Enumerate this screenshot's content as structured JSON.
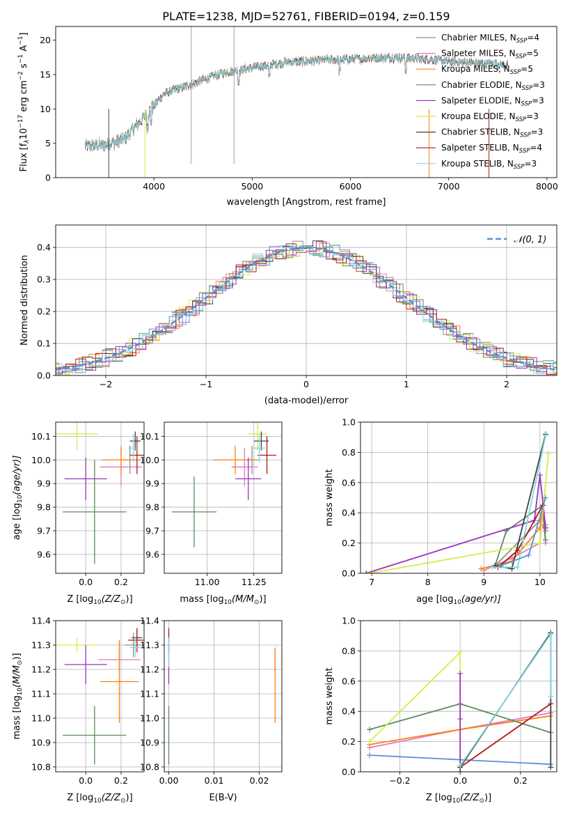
{
  "figure_title": "PLATE=1238, MJD=52761, FIBERID=0194, z=0.159",
  "colors": {
    "chabrier_miles": "#8c8c8c",
    "salpeter_miles": "#e377c2",
    "kroupa_miles": "#ff7f0e",
    "chabrier_elodie": "#5b8a5b",
    "salpeter_elodie": "#9b30c0",
    "kroupa_elodie": "#d4ec4c",
    "chabrier_stelib": "#404040",
    "salpeter_stelib": "#b01818",
    "kroupa_stelib": "#80d8e0",
    "normal_curve": "#5b8fd6",
    "grid": "#b0b0b0"
  },
  "chart_data": [
    {
      "id": "spectrum",
      "type": "line",
      "xlabel": "wavelength [Angstrom, rest frame]",
      "ylabel_main": "Flux [f",
      "ylabel_sub": "λ",
      "ylabel_rest": "10",
      "ylabel_exp": "−17",
      "ylabel_unit": " erg cm",
      "ylabel_exp2": "−2",
      "ylabel_unit2": " s",
      "ylabel_exp3": "−1",
      "ylabel_unit3": " A",
      "ylabel_exp4": "−1",
      "ylabel_end": "]",
      "xlim": [
        3000,
        8100
      ],
      "ylim": [
        0,
        22
      ],
      "xticks": [
        "4000",
        "5000",
        "6000",
        "7000",
        "8000"
      ],
      "yticks": [
        "0",
        "5",
        "10",
        "15",
        "20"
      ],
      "grid": false,
      "legend_position": "top-right",
      "legend": [
        {
          "pre": "Chabrier MILES, N",
          "sub": "SSP",
          "post": "=4"
        },
        {
          "pre": "Salpeter MILES, N",
          "sub": "SSP",
          "post": "=5"
        },
        {
          "pre": "Kroupa MILES, N",
          "sub": "SSP",
          "post": "=5"
        },
        {
          "pre": "Chabrier ELODIE, N",
          "sub": "SSP",
          "post": "=3"
        },
        {
          "pre": "Salpeter ELODIE, N",
          "sub": "SSP",
          "post": "=3"
        },
        {
          "pre": "Kroupa ELODIE, N",
          "sub": "SSP",
          "post": "=3"
        },
        {
          "pre": "Chabrier STELIB, N",
          "sub": "SSP",
          "post": "=3"
        },
        {
          "pre": "Salpeter STELIB, N",
          "sub": "SSP",
          "post": "=4"
        },
        {
          "pre": "Kroupa STELIB, N",
          "sub": "SSP",
          "post": "=3"
        }
      ],
      "continuum": {
        "x": [
          3300,
          3500,
          3700,
          3900,
          4000,
          4100,
          4300,
          4500,
          4700,
          5000,
          5300,
          5600,
          5900,
          6200,
          6500,
          6800,
          7100,
          7400,
          7600
        ],
        "y": [
          4.6,
          4.7,
          5.6,
          8.8,
          10.5,
          12.2,
          13.2,
          14.2,
          15.2,
          16.0,
          16.7,
          17.0,
          17.2,
          17.4,
          17.5,
          17.2,
          16.8,
          16.6,
          16.4
        ]
      },
      "features": {
        "emission_lines_x": [
          4380,
          4815
        ],
        "absorption_x": [
          3934,
          3969,
          4861,
          5175,
          5890,
          6563
        ]
      }
    },
    {
      "id": "residuals",
      "type": "bar",
      "xlabel": "(data-model)/error",
      "ylabel": "Normed distribution",
      "xlim": [
        -2.5,
        2.5
      ],
      "ylim": [
        0,
        0.47
      ],
      "xticks": [
        "−2",
        "−1",
        "0",
        "1",
        "2"
      ],
      "yticks": [
        "0.0",
        "0.1",
        "0.2",
        "0.3",
        "0.4"
      ],
      "grid": true,
      "legend_position": "top-right",
      "legend_label": "𝒩(0, 1)",
      "bin_width": 0.1,
      "curve": "normal(0,1)"
    },
    {
      "id": "age_vs_Z",
      "type": "scatter",
      "xlabel": "Z [log",
      "xlabel_sub": "10",
      "xlabel_post": "(Z/Z",
      "xlabel_sub2": "⊙",
      "xlabel_end": ")]",
      "ylabel": "age  [log",
      "ylabel_sub": "10",
      "ylabel_post": "(age/yr)]",
      "xlim": [
        -0.17,
        0.33
      ],
      "ylim": [
        9.52,
        10.16
      ],
      "xticks": [
        "0.0",
        "0.2"
      ],
      "yticks": [
        "9.6",
        "9.7",
        "9.8",
        "9.9",
        "10.0",
        "10.1"
      ],
      "grid": true,
      "points": [
        {
          "series": "chabrier_miles",
          "x": 0.25,
          "y": 10.0,
          "xerr": 0.05,
          "yerr": 0.06
        },
        {
          "series": "salpeter_miles",
          "x": 0.2,
          "y": 9.97,
          "xerr": 0.12,
          "yerr": 0.08
        },
        {
          "series": "kroupa_miles",
          "x": 0.2,
          "y": 10.0,
          "xerr": 0.11,
          "yerr": 0.06
        },
        {
          "series": "chabrier_elodie",
          "x": 0.05,
          "y": 9.78,
          "xerr": 0.18,
          "yerr": 0.22
        },
        {
          "series": "salpeter_elodie",
          "x": 0.0,
          "y": 9.92,
          "xerr": 0.12,
          "yerr": 0.09
        },
        {
          "series": "kroupa_elodie",
          "x": -0.05,
          "y": 10.11,
          "xerr": 0.12,
          "yerr": 0.07
        },
        {
          "series": "chabrier_stelib",
          "x": 0.28,
          "y": 10.08,
          "xerr": 0.03,
          "yerr": 0.04
        },
        {
          "series": "salpeter_stelib",
          "x": 0.29,
          "y": 10.02,
          "xerr": 0.04,
          "yerr": 0.08
        },
        {
          "series": "kroupa_stelib",
          "x": 0.27,
          "y": 10.05,
          "xerr": 0.03,
          "yerr": 0.06
        }
      ]
    },
    {
      "id": "age_vs_mass",
      "type": "scatter",
      "xlabel": "mass [log",
      "xlabel_sub": "10",
      "xlabel_post": "(M/M",
      "xlabel_sub2": "⊙",
      "xlabel_end": ")]",
      "xlim": [
        10.77,
        11.4
      ],
      "ylim": [
        9.52,
        10.16
      ],
      "xticks": [
        "11.00",
        "11.25"
      ],
      "yticks": [
        "9.6",
        "9.7",
        "9.8",
        "9.9",
        "10.0",
        "10.1"
      ],
      "grid": true,
      "points": [
        {
          "series": "chabrier_miles",
          "x": 11.24,
          "y": 10.0,
          "xerr": 0.04,
          "yerr": 0.06
        },
        {
          "series": "salpeter_miles",
          "x": 11.2,
          "y": 9.97,
          "xerr": 0.07,
          "yerr": 0.08
        },
        {
          "series": "kroupa_miles",
          "x": 11.15,
          "y": 10.0,
          "xerr": 0.12,
          "yerr": 0.06
        },
        {
          "series": "chabrier_elodie",
          "x": 10.93,
          "y": 9.78,
          "xerr": 0.12,
          "yerr": 0.15
        },
        {
          "series": "salpeter_elodie",
          "x": 11.22,
          "y": 9.92,
          "xerr": 0.07,
          "yerr": 0.09
        },
        {
          "series": "kroupa_elodie",
          "x": 11.27,
          "y": 10.11,
          "xerr": 0.05,
          "yerr": 0.07
        },
        {
          "series": "chabrier_stelib",
          "x": 11.29,
          "y": 10.08,
          "xerr": 0.04,
          "yerr": 0.04
        },
        {
          "series": "salpeter_stelib",
          "x": 11.32,
          "y": 10.02,
          "xerr": 0.05,
          "yerr": 0.08
        },
        {
          "series": "kroupa_stelib",
          "x": 11.28,
          "y": 10.05,
          "xerr": 0.03,
          "yerr": 0.06
        }
      ]
    },
    {
      "id": "weight_vs_age",
      "type": "line",
      "xlabel": "age  [log",
      "xlabel_sub": "10",
      "xlabel_post": "(age/yr)]",
      "ylabel": "mass weight",
      "xlim": [
        6.8,
        10.3
      ],
      "ylim": [
        0,
        1
      ],
      "xticks": [
        "7",
        "8",
        "9",
        "10"
      ],
      "yticks": [
        "0.0",
        "0.2",
        "0.4",
        "0.6",
        "0.8",
        "1.0"
      ],
      "grid": true,
      "series": [
        {
          "key": "chabrier_miles",
          "x": [
            9.2,
            10.0,
            10.1,
            10.1
          ],
          "y": [
            0.05,
            0.35,
            0.28,
            0.32
          ]
        },
        {
          "key": "salpeter_miles",
          "x": [
            9.0,
            9.5,
            10.0,
            10.05,
            10.1
          ],
          "y": [
            0.02,
            0.1,
            0.2,
            0.4,
            0.2
          ]
        },
        {
          "key": "kroupa_miles",
          "x": [
            8.95,
            9.5,
            10.0,
            10.05,
            10.1
          ],
          "y": [
            0.03,
            0.08,
            0.3,
            0.45,
            0.3
          ]
        },
        {
          "key": "chabrier_elodie",
          "x": [
            9.2,
            9.4,
            10.05,
            10.1
          ],
          "y": [
            0.05,
            0.28,
            0.45,
            0.22
          ]
        },
        {
          "key": "salpeter_elodie",
          "x": [
            6.9,
            9.9,
            10.0,
            10.1
          ],
          "y": [
            0.0,
            0.35,
            0.65,
            0.3
          ]
        },
        {
          "key": "kroupa_elodie",
          "x": [
            6.95,
            10.0,
            10.15
          ],
          "y": [
            0.0,
            0.2,
            0.79
          ]
        },
        {
          "key": "chabrier_stelib",
          "x": [
            9.2,
            9.5,
            10.1
          ],
          "y": [
            0.05,
            0.03,
            0.92
          ]
        },
        {
          "key": "salpeter_stelib",
          "x": [
            9.25,
            9.6,
            10.05
          ],
          "y": [
            0.04,
            0.15,
            0.45
          ]
        },
        {
          "key": "kroupa_stelib",
          "x": [
            9.15,
            9.6,
            10.1
          ],
          "y": [
            0.04,
            0.04,
            0.91
          ]
        },
        {
          "key": "normal_curve",
          "x": [
            9.3,
            9.8,
            10.1
          ],
          "y": [
            0.05,
            0.12,
            0.5
          ]
        }
      ]
    },
    {
      "id": "mass_vs_Z",
      "type": "scatter",
      "xlabel": "Z [log",
      "xlabel_sub": "10",
      "xlabel_post": "(Z/Z",
      "xlabel_sub2": "⊙",
      "xlabel_end": ")]",
      "ylabel": "mass [log",
      "ylabel_sub": "10",
      "ylabel_post": "(M/M",
      "ylabel_sub2": "⊙",
      "ylabel_end": ")]",
      "xlim": [
        -0.17,
        0.33
      ],
      "ylim": [
        10.78,
        11.4
      ],
      "xticks": [
        "0.0",
        "0.2"
      ],
      "yticks": [
        "10.8",
        "10.9",
        "11.0",
        "11.1",
        "11.2",
        "11.3",
        "11.4"
      ],
      "grid": true,
      "points": [
        {
          "series": "chabrier_miles",
          "x": 0.27,
          "y": 11.3,
          "xerr": 0.05,
          "yerr": 0.05
        },
        {
          "series": "salpeter_miles",
          "x": 0.19,
          "y": 11.24,
          "xerr": 0.12,
          "yerr": 0.05
        },
        {
          "series": "kroupa_miles",
          "x": 0.19,
          "y": 11.15,
          "xerr": 0.11,
          "yerr": 0.17
        },
        {
          "series": "chabrier_elodie",
          "x": 0.05,
          "y": 10.93,
          "xerr": 0.18,
          "yerr": 0.12
        },
        {
          "series": "salpeter_elodie",
          "x": 0.0,
          "y": 11.22,
          "xerr": 0.12,
          "yerr": 0.08
        },
        {
          "series": "kroupa_elodie",
          "x": -0.05,
          "y": 11.3,
          "xerr": 0.12,
          "yerr": 0.03
        },
        {
          "series": "chabrier_stelib",
          "x": 0.29,
          "y": 11.33,
          "xerr": 0.03,
          "yerr": 0.03
        },
        {
          "series": "salpeter_stelib",
          "x": 0.29,
          "y": 11.32,
          "xerr": 0.05,
          "yerr": 0.05
        },
        {
          "series": "kroupa_stelib",
          "x": 0.28,
          "y": 11.29,
          "xerr": 0.03,
          "yerr": 0.04
        }
      ]
    },
    {
      "id": "mass_vs_ebv",
      "type": "scatter",
      "xlabel": "E(B-V)",
      "xlim": [
        -0.001,
        0.025
      ],
      "ylim": [
        10.78,
        11.4
      ],
      "xticks": [
        "0.00",
        "0.01",
        "0.02"
      ],
      "yticks": [
        "10.8",
        "10.9",
        "11.0",
        "11.1",
        "11.2",
        "11.3",
        "11.4"
      ],
      "grid": true,
      "points": [
        {
          "series": "chabrier_elodie",
          "x": 0.0,
          "y": 10.93,
          "xerr": 0,
          "yerr": 0.12
        },
        {
          "series": "salpeter_elodie",
          "x": 0.0,
          "y": 11.22,
          "xerr": 0,
          "yerr": 0.08
        },
        {
          "series": "salpeter_stelib",
          "x": 0.0,
          "y": 11.32,
          "xerr": 0,
          "yerr": 0.05
        },
        {
          "series": "kroupa_stelib",
          "x": 0.0,
          "y": 11.27,
          "xerr": 0,
          "yerr": 0.06
        },
        {
          "series": "salpeter_miles",
          "x": 0.0235,
          "y": 11.24,
          "xerr": 0,
          "yerr": 0.05
        },
        {
          "series": "kroupa_miles",
          "x": 0.0235,
          "y": 11.13,
          "xerr": 0,
          "yerr": 0.15
        }
      ]
    },
    {
      "id": "weight_vs_Z",
      "type": "line",
      "xlabel": "Z [log",
      "xlabel_sub": "10",
      "xlabel_post": "(Z/Z",
      "xlabel_sub2": "⊙",
      "xlabel_end": ")]",
      "ylabel": "mass weight",
      "xlim": [
        -0.33,
        0.32
      ],
      "ylim": [
        0,
        1
      ],
      "xticks": [
        "−0.2",
        "0.0",
        "0.2"
      ],
      "yticks": [
        "0.0",
        "0.2",
        "0.4",
        "0.6",
        "0.8",
        "1.0"
      ],
      "grid": true,
      "series": [
        {
          "key": "normal_curve",
          "x": [
            -0.3,
            0.0,
            0.3
          ],
          "y": [
            0.11,
            0.08,
            0.05
          ]
        },
        {
          "key": "salpeter_miles",
          "x": [
            -0.3,
            0.0,
            0.3
          ],
          "y": [
            0.16,
            0.28,
            0.39
          ]
        },
        {
          "key": "kroupa_miles",
          "x": [
            -0.3,
            0.0,
            0.3
          ],
          "y": [
            0.18,
            0.28,
            0.37
          ]
        },
        {
          "key": "chabrier_elodie",
          "x": [
            -0.3,
            0.0,
            0.3
          ],
          "y": [
            0.28,
            0.45,
            0.26
          ]
        },
        {
          "key": "kroupa_elodie",
          "x": [
            -0.3,
            0.0,
            0.0
          ],
          "y": [
            0.2,
            0.79,
            0.0
          ]
        },
        {
          "key": "salpeter_elodie",
          "x": [
            0.0,
            0.0,
            0.0
          ],
          "y": [
            0.65,
            0.35,
            0.0
          ]
        },
        {
          "key": "salpeter_stelib",
          "x": [
            0.0,
            0.3
          ],
          "y": [
            0.03,
            0.45
          ]
        },
        {
          "key": "chabrier_stelib",
          "x": [
            0.0,
            0.3,
            0.3
          ],
          "y": [
            0.03,
            0.92,
            0.03
          ]
        },
        {
          "key": "kroupa_stelib",
          "x": [
            0.0,
            0.3,
            0.3
          ],
          "y": [
            0.04,
            0.91,
            0.5
          ]
        }
      ]
    }
  ]
}
